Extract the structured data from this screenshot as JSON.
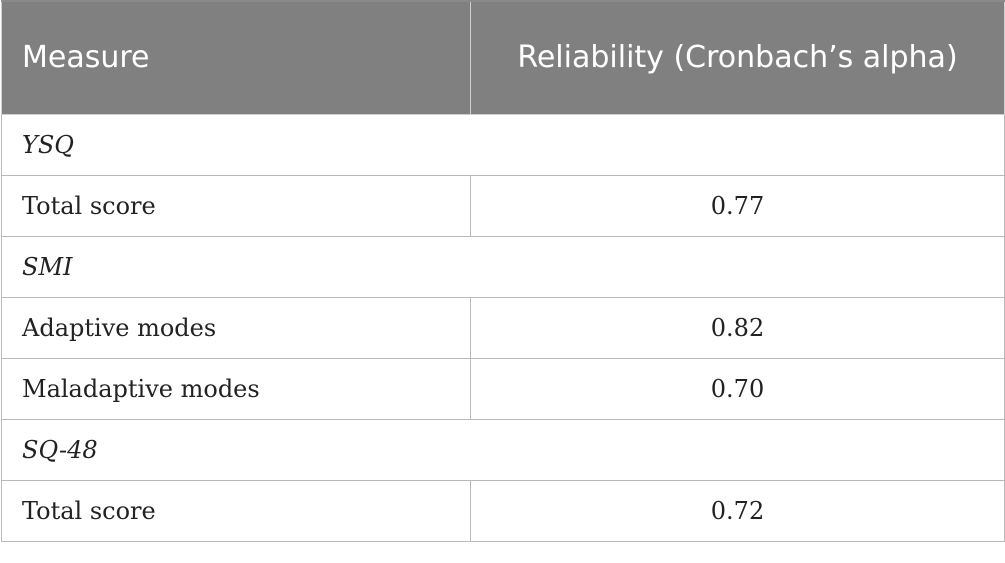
{
  "table": {
    "headers": [
      "Measure",
      "Reliability (Cronbach’s alpha)"
    ],
    "rows": [
      {
        "type": "section",
        "label": "YSQ",
        "value": ""
      },
      {
        "type": "row",
        "label": "Total score",
        "value": "0.77"
      },
      {
        "type": "section",
        "label": "SMI",
        "value": ""
      },
      {
        "type": "row",
        "label": "Adaptive modes",
        "value": "0.82"
      },
      {
        "type": "row",
        "label": "Maladaptive modes",
        "value": "0.70"
      },
      {
        "type": "section",
        "label": "SQ-48",
        "value": ""
      },
      {
        "type": "row",
        "label": "Total score",
        "value": "0.72"
      }
    ]
  }
}
